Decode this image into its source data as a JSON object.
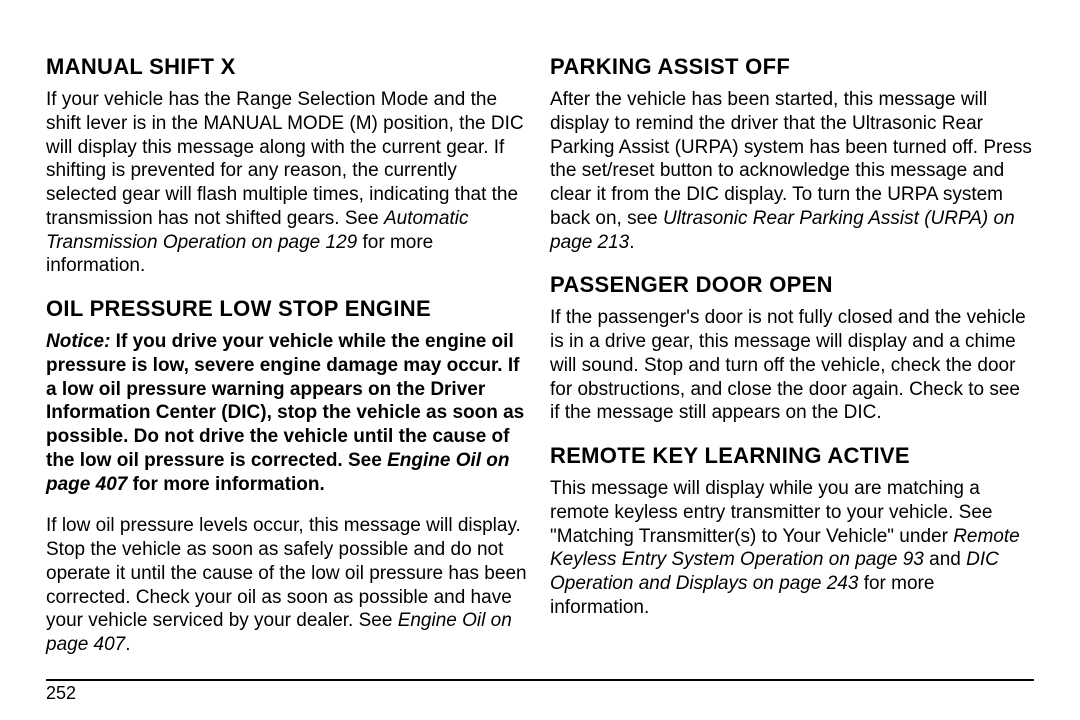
{
  "left": {
    "h1": "MANUAL SHIFT X",
    "p1a": "If your vehicle has the Range Selection Mode and the shift lever is in the MANUAL MODE (M) position, the DIC will display this message along with the current gear. If shifting is prevented for any reason, the currently selected gear will flash multiple times, indicating that the transmission has not shifted gears. See ",
    "p1i": "Automatic Transmission Operation on page 129",
    "p1b": " for more information.",
    "h2": "OIL PRESSURE LOW STOP ENGINE",
    "p2i1": "Notice:",
    "p2b1": "   If you drive your vehicle while the engine oil pressure is low, severe engine damage may occur. If a low oil pressure warning appears on the Driver Information Center (DIC), stop the vehicle as soon as possible. Do not drive the vehicle until the cause of the low oil pressure is corrected. See ",
    "p2i2": "Engine Oil on page 407",
    "p2b2": " for more information.",
    "p3a": "If low oil pressure levels occur, this message will display. Stop the vehicle as soon as safely possible and do not operate it until the cause of the low oil pressure has been corrected. Check your oil as soon as possible and have your vehicle serviced by your dealer. See ",
    "p3i": "Engine Oil on page 407",
    "p3b": "."
  },
  "right": {
    "h1": "PARKING ASSIST OFF",
    "p1a": "After the vehicle has been started, this message will display to remind the driver that the Ultrasonic Rear Parking Assist (URPA) system has been turned off. Press the set/reset button to acknowledge this message and clear it from the DIC display. To turn the URPA system back on, see ",
    "p1i": "Ultrasonic Rear Parking Assist (URPA) on page 213",
    "p1b": ".",
    "h2": "PASSENGER DOOR OPEN",
    "p2": "If the passenger's door is not fully closed and the vehicle is in a drive gear, this message will display and a chime will sound. Stop and turn off the vehicle, check the door for obstructions, and close the door again. Check to see if the message still appears on the DIC.",
    "h3": "REMOTE KEY LEARNING ACTIVE",
    "p3a": "This message will display while you are matching a remote keyless entry transmitter to your vehicle. See \"Matching Transmitter(s) to Your Vehicle\" under ",
    "p3i1": "Remote Keyless Entry System Operation on page 93",
    "p3m": " and ",
    "p3i2": "DIC Operation and Displays on page 243",
    "p3b": " for more information."
  },
  "page_number": "252"
}
